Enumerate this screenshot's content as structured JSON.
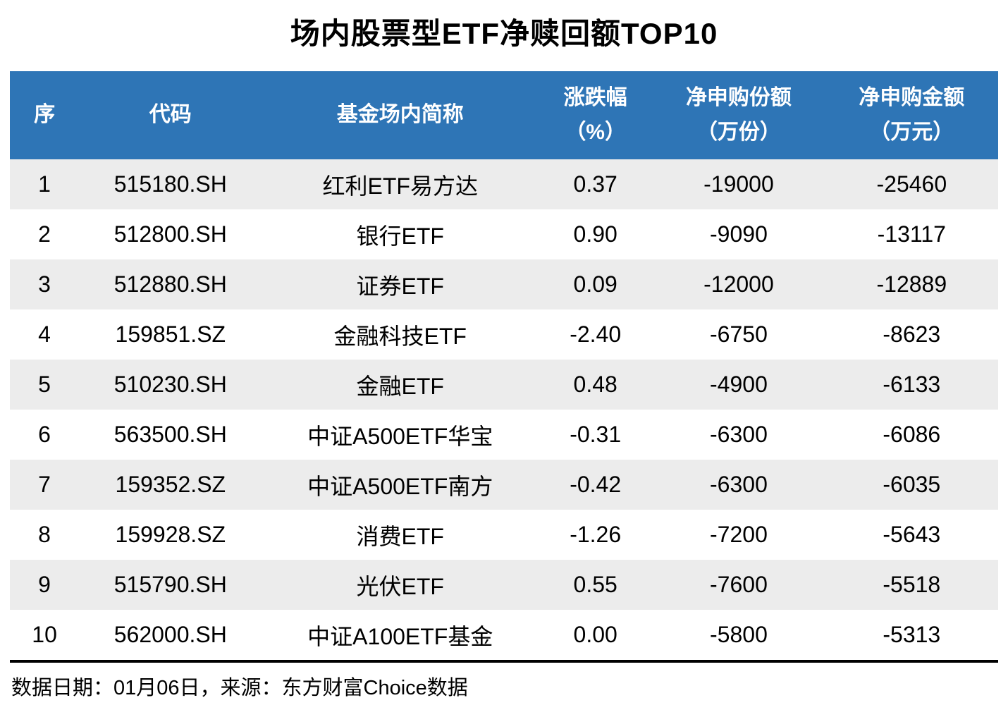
{
  "chart_data": {
    "type": "table",
    "title": "场内股票型ETF净赎回额TOP10",
    "columns": {
      "seq": {
        "label": "序"
      },
      "code": {
        "label": "代码"
      },
      "name": {
        "label": "基金场内简称"
      },
      "change": {
        "label": "涨跌幅",
        "unit": "（%）"
      },
      "net_shares": {
        "label": "净申购份额",
        "unit": "（万份）"
      },
      "net_amount": {
        "label": "净申购金额",
        "unit": "（万元）"
      }
    },
    "rows": [
      {
        "seq": "1",
        "code": "515180.SH",
        "name": "红利ETF易方达",
        "change": "0.37",
        "net_shares": "-19000",
        "net_amount": "-25460"
      },
      {
        "seq": "2",
        "code": "512800.SH",
        "name": "银行ETF",
        "change": "0.90",
        "net_shares": "-9090",
        "net_amount": "-13117"
      },
      {
        "seq": "3",
        "code": "512880.SH",
        "name": "证券ETF",
        "change": "0.09",
        "net_shares": "-12000",
        "net_amount": "-12889"
      },
      {
        "seq": "4",
        "code": "159851.SZ",
        "name": "金融科技ETF",
        "change": "-2.40",
        "net_shares": "-6750",
        "net_amount": "-8623"
      },
      {
        "seq": "5",
        "code": "510230.SH",
        "name": "金融ETF",
        "change": "0.48",
        "net_shares": "-4900",
        "net_amount": "-6133"
      },
      {
        "seq": "6",
        "code": "563500.SH",
        "name": "中证A500ETF华宝",
        "change": "-0.31",
        "net_shares": "-6300",
        "net_amount": "-6086"
      },
      {
        "seq": "7",
        "code": "159352.SZ",
        "name": "中证A500ETF南方",
        "change": "-0.42",
        "net_shares": "-6300",
        "net_amount": "-6035"
      },
      {
        "seq": "8",
        "code": "159928.SZ",
        "name": "消费ETF",
        "change": "-1.26",
        "net_shares": "-7200",
        "net_amount": "-5643"
      },
      {
        "seq": "9",
        "code": "515790.SH",
        "name": "光伏ETF",
        "change": "0.55",
        "net_shares": "-7600",
        "net_amount": "-5518"
      },
      {
        "seq": "10",
        "code": "562000.SH",
        "name": "中证A100ETF基金",
        "change": "0.00",
        "net_shares": "-5800",
        "net_amount": "-5313"
      }
    ]
  },
  "footer": {
    "note": "数据日期：01月06日，来源：东方财富Choice数据"
  },
  "colors": {
    "header_bg": "#2E75B6",
    "header_text": "#FFFFFF",
    "alt_row_bg": "#ECECEC",
    "bottom_border": "#000000",
    "accent_line": "#2E75B6"
  }
}
